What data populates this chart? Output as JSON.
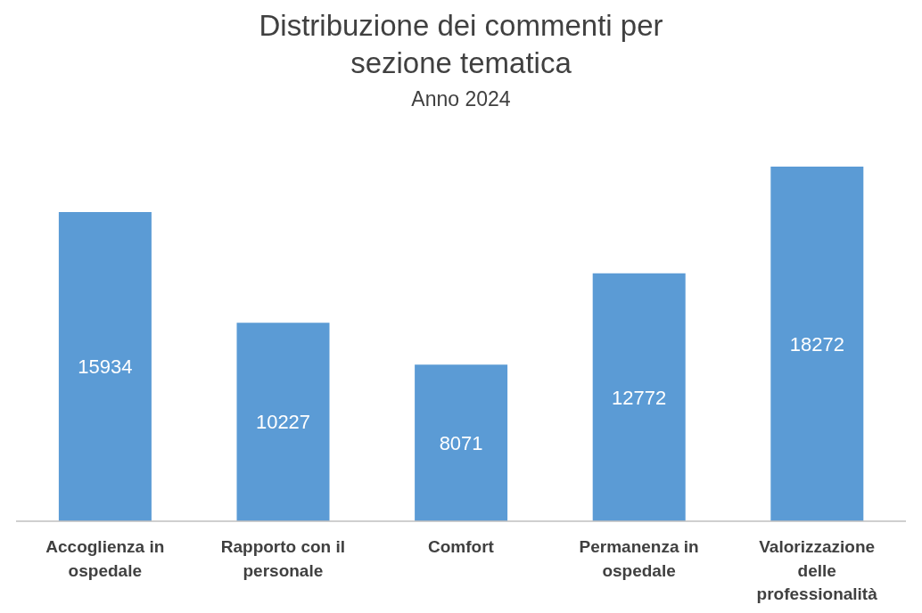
{
  "chart_data": {
    "type": "bar",
    "title": "Distribuzione dei commenti per sezione tematica",
    "subtitle": "Anno 2024",
    "categories": [
      "Accoglienza in ospedale",
      "Rapporto con il personale",
      "Comfort",
      "Permanenza in ospedale",
      "Valorizzazione delle professionalità"
    ],
    "values": [
      15934,
      10227,
      8071,
      12772,
      18272
    ],
    "color": "#5b9bd5",
    "data_labels": true
  }
}
